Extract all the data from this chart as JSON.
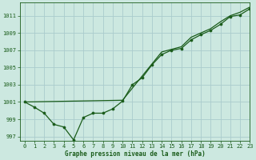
{
  "title": "Graphe pression niveau de la mer (hPa)",
  "bg_color": "#cce8e0",
  "grid_color": "#aacccc",
  "line_color": "#1a5c1a",
  "marker_color": "#1a5c1a",
  "xlim": [
    -0.5,
    23
  ],
  "ylim": [
    996.5,
    1012.5
  ],
  "yticks": [
    997,
    999,
    1001,
    1003,
    1005,
    1007,
    1009,
    1011
  ],
  "xticks": [
    0,
    1,
    2,
    3,
    4,
    5,
    6,
    7,
    8,
    9,
    10,
    11,
    12,
    13,
    14,
    15,
    16,
    17,
    18,
    19,
    20,
    21,
    22,
    23
  ],
  "series_marked_x": [
    0,
    1,
    2,
    3,
    4,
    5,
    6,
    7,
    8,
    9,
    10,
    11,
    12,
    13,
    14,
    15,
    16,
    17,
    18,
    19,
    20,
    21,
    22,
    23
  ],
  "series_marked_y": [
    1001.0,
    1000.4,
    999.7,
    998.4,
    998.1,
    996.6,
    999.2,
    999.7,
    999.7,
    1000.2,
    1001.1,
    1003.0,
    1003.8,
    1005.3,
    1006.5,
    1007.0,
    1007.2,
    1008.2,
    1008.8,
    1009.3,
    1010.0,
    1010.9,
    1011.1,
    1011.8
  ],
  "series_smooth_x": [
    0,
    10,
    14,
    16,
    17,
    18,
    19,
    20,
    21,
    22,
    23
  ],
  "series_smooth_y": [
    1001.0,
    1001.2,
    1006.8,
    1007.4,
    1008.5,
    1009.0,
    1009.5,
    1010.3,
    1011.0,
    1011.4,
    1012.0
  ],
  "title_fontsize": 5.5,
  "tick_fontsize": 5
}
